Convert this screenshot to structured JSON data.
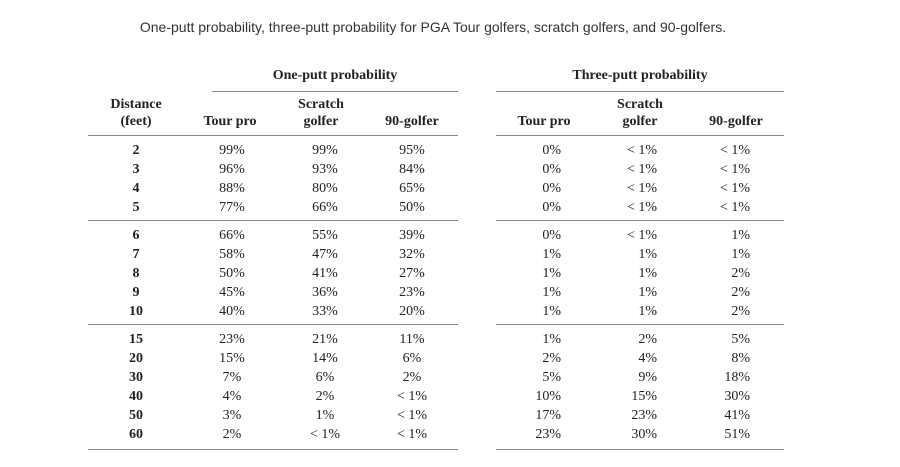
{
  "caption": "One-putt probability, three-putt probability for PGA Tour golfers, scratch golfers, and 90-golfers.",
  "groups": {
    "one_putt": "One-putt probability",
    "three_putt": "Three-putt probability"
  },
  "columns": {
    "distance": [
      "Distance",
      "(feet)"
    ],
    "tour_pro": [
      "Tour pro"
    ],
    "scratch": [
      "Scratch",
      "golfer"
    ],
    "ninety": [
      "90-golfer"
    ]
  },
  "blocks": [
    [
      {
        "distance": "2",
        "one": [
          "99%",
          "99%",
          "95%"
        ],
        "three": [
          "0%",
          "< 1%",
          "< 1%"
        ]
      },
      {
        "distance": "3",
        "one": [
          "96%",
          "93%",
          "84%"
        ],
        "three": [
          "0%",
          "< 1%",
          "< 1%"
        ]
      },
      {
        "distance": "4",
        "one": [
          "88%",
          "80%",
          "65%"
        ],
        "three": [
          "0%",
          "< 1%",
          "< 1%"
        ]
      },
      {
        "distance": "5",
        "one": [
          "77%",
          "66%",
          "50%"
        ],
        "three": [
          "0%",
          "< 1%",
          "< 1%"
        ]
      }
    ],
    [
      {
        "distance": "6",
        "one": [
          "66%",
          "55%",
          "39%"
        ],
        "three": [
          "0%",
          "< 1%",
          "1%"
        ]
      },
      {
        "distance": "7",
        "one": [
          "58%",
          "47%",
          "32%"
        ],
        "three": [
          "1%",
          "1%",
          "1%"
        ]
      },
      {
        "distance": "8",
        "one": [
          "50%",
          "41%",
          "27%"
        ],
        "three": [
          "1%",
          "1%",
          "2%"
        ]
      },
      {
        "distance": "9",
        "one": [
          "45%",
          "36%",
          "23%"
        ],
        "three": [
          "1%",
          "1%",
          "2%"
        ]
      },
      {
        "distance": "10",
        "one": [
          "40%",
          "33%",
          "20%"
        ],
        "three": [
          "1%",
          "1%",
          "2%"
        ]
      }
    ],
    [
      {
        "distance": "15",
        "one": [
          "23%",
          "21%",
          "11%"
        ],
        "three": [
          "1%",
          "2%",
          "5%"
        ]
      },
      {
        "distance": "20",
        "one": [
          "15%",
          "14%",
          "6%"
        ],
        "three": [
          "2%",
          "4%",
          "8%"
        ]
      },
      {
        "distance": "30",
        "one": [
          "7%",
          "6%",
          "2%"
        ],
        "three": [
          "5%",
          "9%",
          "18%"
        ]
      },
      {
        "distance": "40",
        "one": [
          "4%",
          "2%",
          "< 1%"
        ],
        "three": [
          "10%",
          "15%",
          "30%"
        ]
      },
      {
        "distance": "50",
        "one": [
          "3%",
          "1%",
          "< 1%"
        ],
        "three": [
          "17%",
          "23%",
          "41%"
        ]
      },
      {
        "distance": "60",
        "one": [
          "2%",
          "< 1%",
          "< 1%"
        ],
        "three": [
          "23%",
          "30%",
          "51%"
        ]
      }
    ]
  ]
}
